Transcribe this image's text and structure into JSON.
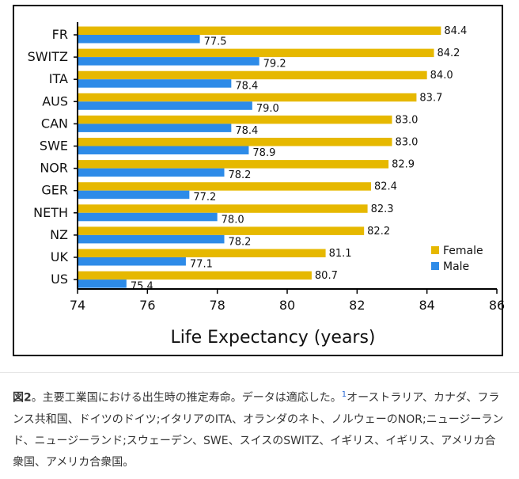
{
  "chart_data": {
    "type": "bar",
    "orientation": "horizontal",
    "categories": [
      "FR",
      "SWITZ",
      "ITA",
      "AUS",
      "CAN",
      "SWE",
      "NOR",
      "GER",
      "NETH",
      "NZ",
      "UK",
      "US"
    ],
    "series": [
      {
        "name": "Female",
        "color": "#e6b800",
        "values": [
          84.4,
          84.2,
          84.0,
          83.7,
          83.0,
          83.0,
          82.9,
          82.4,
          82.3,
          82.2,
          81.1,
          80.7
        ]
      },
      {
        "name": "Male",
        "color": "#2d8be8",
        "values": [
          77.5,
          79.2,
          78.4,
          79.0,
          78.4,
          78.9,
          78.2,
          77.2,
          78.0,
          78.2,
          77.1,
          75.4
        ]
      }
    ],
    "value_labels": {
      "Female": [
        "84.4",
        "84.2",
        "84.0",
        "83.7",
        "83.0",
        "83.0",
        "82.9",
        "82.4",
        "82.3",
        "82.2",
        "81.1",
        "80.7"
      ],
      "Male": [
        "77.5",
        "79.2",
        "78.4",
        "79.0",
        "78.4",
        "78.9",
        "78.2",
        "77.2",
        "78.0",
        "78.2",
        "77.1",
        "75.4"
      ]
    },
    "xlabel": "Life Expectancy (years)",
    "xlim": [
      74,
      86
    ],
    "xticks": [
      74,
      76,
      78,
      80,
      82,
      84,
      86
    ],
    "grid": false,
    "legend_position": "bottom-right"
  },
  "caption": {
    "label": "図2",
    "before_ref": "。主要工業国における出生時の推定寿命。データは適応した。",
    "ref": "1",
    "after_ref": "オーストラリア、カナダ、フランス共和国、ドイツのドイツ;イタリアのITA、オランダのネト、ノルウェーのNOR;ニュージーランド、ニュージーランド;スウェーデン、SWE、スイスのSWITZ、イギリス、イギリス、アメリカ合衆国、アメリカ合衆国。"
  }
}
